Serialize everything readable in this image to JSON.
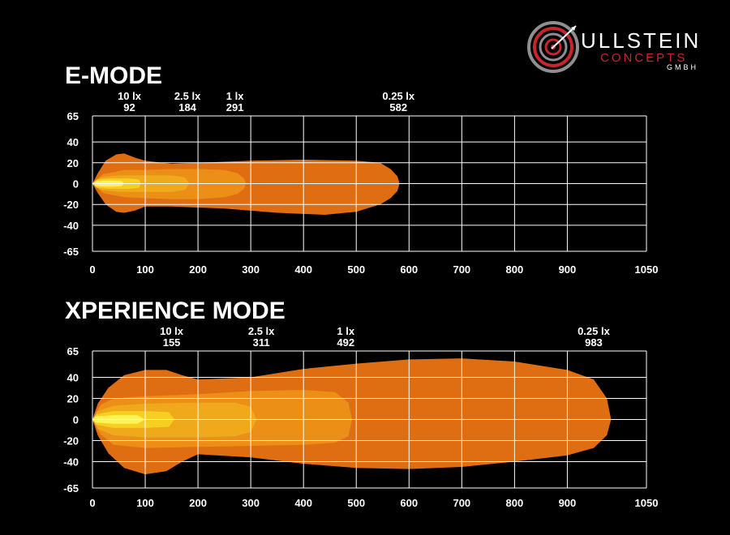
{
  "logo": {
    "line1": "ULLSTEIN",
    "line2": "CONCEPTS",
    "line3": "GMBH",
    "icon": "target-icon",
    "colors": {
      "ring": "#9a9a9a",
      "accent": "#c8262d"
    }
  },
  "colors": {
    "background": "#000000",
    "grid": "#ffffff",
    "zone_0_25lx": "#df6e12",
    "zone_1lx": "#eb8f17",
    "zone_2_5lx": "#f0a91b",
    "zone_10lx": "#f6d020",
    "zone_core": "#fdf25a"
  },
  "chart_data": [
    {
      "type": "area",
      "title": "E-MODE",
      "x_ticks": [
        0,
        100,
        200,
        300,
        400,
        500,
        600,
        700,
        800,
        900,
        1050
      ],
      "y_ticks": [
        65,
        40,
        20,
        0,
        -20,
        -40,
        -65
      ],
      "xlim": [
        0,
        1050
      ],
      "ylim": [
        -65,
        65
      ],
      "grid": true,
      "annotations": [
        {
          "label": "10 lx",
          "value": "92",
          "x": 70
        },
        {
          "label": "2.5 lx",
          "value": "184",
          "x": 180
        },
        {
          "label": "1 lx",
          "value": "291",
          "x": 270
        },
        {
          "label": "0.25 lx",
          "value": "582",
          "x": 580
        }
      ],
      "series": [
        {
          "range": 582,
          "points": [
            [
              0,
              0
            ],
            [
              10,
              10
            ],
            [
              25,
              22
            ],
            [
              45,
              28
            ],
            [
              60,
              29
            ],
            [
              80,
              25
            ],
            [
              100,
              22
            ],
            [
              150,
              19
            ],
            [
              200,
              20
            ],
            [
              300,
              22
            ],
            [
              400,
              23
            ],
            [
              500,
              22
            ],
            [
              545,
              20
            ],
            [
              565,
              14
            ],
            [
              578,
              7
            ],
            [
              582,
              0
            ],
            [
              578,
              -7
            ],
            [
              565,
              -14
            ],
            [
              545,
              -20
            ],
            [
              500,
              -27
            ],
            [
              440,
              -30
            ],
            [
              350,
              -28
            ],
            [
              250,
              -24
            ],
            [
              150,
              -22
            ],
            [
              100,
              -22
            ],
            [
              80,
              -26
            ],
            [
              60,
              -28
            ],
            [
              45,
              -27
            ],
            [
              25,
              -20
            ],
            [
              10,
              -9
            ],
            [
              0,
              0
            ]
          ]
        },
        {
          "range": 291,
          "points": [
            [
              0,
              0
            ],
            [
              20,
              9
            ],
            [
              60,
              13
            ],
            [
              100,
              13
            ],
            [
              150,
              14
            ],
            [
              200,
              14
            ],
            [
              250,
              13
            ],
            [
              275,
              10
            ],
            [
              287,
              5
            ],
            [
              291,
              0
            ],
            [
              287,
              -5
            ],
            [
              275,
              -10
            ],
            [
              250,
              -13
            ],
            [
              200,
              -15
            ],
            [
              150,
              -15
            ],
            [
              100,
              -14
            ],
            [
              60,
              -13
            ],
            [
              20,
              -9
            ],
            [
              0,
              0
            ]
          ]
        },
        {
          "range": 184,
          "points": [
            [
              0,
              0
            ],
            [
              15,
              6
            ],
            [
              50,
              8
            ],
            [
              100,
              8
            ],
            [
              150,
              8
            ],
            [
              175,
              6
            ],
            [
              184,
              0
            ],
            [
              175,
              -6
            ],
            [
              150,
              -8
            ],
            [
              100,
              -8
            ],
            [
              50,
              -8
            ],
            [
              15,
              -6
            ],
            [
              0,
              0
            ]
          ]
        },
        {
          "range": 92,
          "points": [
            [
              0,
              0
            ],
            [
              8,
              4
            ],
            [
              30,
              5
            ],
            [
              70,
              5
            ],
            [
              88,
              4
            ],
            [
              92,
              0
            ],
            [
              88,
              -4
            ],
            [
              70,
              -5
            ],
            [
              30,
              -5
            ],
            [
              8,
              -4
            ],
            [
              0,
              0
            ]
          ]
        },
        {
          "range": 60,
          "points": [
            [
              0,
              0
            ],
            [
              8,
              2.5
            ],
            [
              30,
              3
            ],
            [
              55,
              2.5
            ],
            [
              60,
              0
            ],
            [
              55,
              -2.5
            ],
            [
              30,
              -3
            ],
            [
              8,
              -2.5
            ],
            [
              0,
              0
            ]
          ]
        }
      ]
    },
    {
      "type": "area",
      "title": "XPERIENCE MODE",
      "x_ticks": [
        0,
        100,
        200,
        300,
        400,
        500,
        600,
        700,
        800,
        900,
        1050
      ],
      "y_ticks": [
        65,
        40,
        20,
        0,
        -20,
        -40,
        -65
      ],
      "xlim": [
        0,
        1050
      ],
      "ylim": [
        -65,
        65
      ],
      "grid": true,
      "annotations": [
        {
          "label": "10 lx",
          "value": "155",
          "x": 150
        },
        {
          "label": "2.5 lx",
          "value": "311",
          "x": 320
        },
        {
          "label": "1 lx",
          "value": "492",
          "x": 480
        },
        {
          "label": "0.25 lx",
          "value": "983",
          "x": 950
        }
      ],
      "series": [
        {
          "range": 983,
          "points": [
            [
              0,
              0
            ],
            [
              10,
              15
            ],
            [
              30,
              30
            ],
            [
              60,
              42
            ],
            [
              100,
              47
            ],
            [
              140,
              47
            ],
            [
              170,
              42
            ],
            [
              200,
              38
            ],
            [
              300,
              40
            ],
            [
              400,
              48
            ],
            [
              500,
              53
            ],
            [
              600,
              57
            ],
            [
              700,
              58
            ],
            [
              800,
              55
            ],
            [
              900,
              47
            ],
            [
              950,
              38
            ],
            [
              975,
              20
            ],
            [
              983,
              0
            ],
            [
              975,
              -15
            ],
            [
              950,
              -27
            ],
            [
              900,
              -34
            ],
            [
              800,
              -40
            ],
            [
              700,
              -45
            ],
            [
              600,
              -47
            ],
            [
              500,
              -46
            ],
            [
              400,
              -42
            ],
            [
              300,
              -36
            ],
            [
              200,
              -33
            ],
            [
              170,
              -40
            ],
            [
              140,
              -49
            ],
            [
              100,
              -52
            ],
            [
              60,
              -46
            ],
            [
              30,
              -32
            ],
            [
              10,
              -15
            ],
            [
              0,
              0
            ]
          ]
        },
        {
          "range": 492,
          "points": [
            [
              0,
              0
            ],
            [
              15,
              14
            ],
            [
              40,
              20
            ],
            [
              100,
              22
            ],
            [
              200,
              24
            ],
            [
              300,
              27
            ],
            [
              400,
              28
            ],
            [
              460,
              26
            ],
            [
              485,
              16
            ],
            [
              492,
              0
            ],
            [
              485,
              -16
            ],
            [
              460,
              -22
            ],
            [
              400,
              -24
            ],
            [
              300,
              -25
            ],
            [
              200,
              -26
            ],
            [
              100,
              -27
            ],
            [
              40,
              -24
            ],
            [
              15,
              -14
            ],
            [
              0,
              0
            ]
          ]
        },
        {
          "range": 311,
          "points": [
            [
              0,
              0
            ],
            [
              10,
              8
            ],
            [
              40,
              13
            ],
            [
              100,
              15
            ],
            [
              200,
              16
            ],
            [
              270,
              16
            ],
            [
              300,
              12
            ],
            [
              311,
              0
            ],
            [
              300,
              -12
            ],
            [
              270,
              -16
            ],
            [
              200,
              -17
            ],
            [
              100,
              -17
            ],
            [
              40,
              -15
            ],
            [
              10,
              -9
            ],
            [
              0,
              0
            ]
          ]
        },
        {
          "range": 155,
          "points": [
            [
              0,
              0
            ],
            [
              8,
              5
            ],
            [
              40,
              8
            ],
            [
              100,
              8
            ],
            [
              145,
              7
            ],
            [
              155,
              0
            ],
            [
              145,
              -7
            ],
            [
              100,
              -8
            ],
            [
              40,
              -8
            ],
            [
              8,
              -5
            ],
            [
              0,
              0
            ]
          ]
        },
        {
          "range": 100,
          "points": [
            [
              0,
              0
            ],
            [
              6,
              3
            ],
            [
              40,
              4
            ],
            [
              85,
              4
            ],
            [
              100,
              0
            ],
            [
              85,
              -4
            ],
            [
              40,
              -4
            ],
            [
              6,
              -3
            ],
            [
              0,
              0
            ]
          ]
        }
      ]
    }
  ]
}
